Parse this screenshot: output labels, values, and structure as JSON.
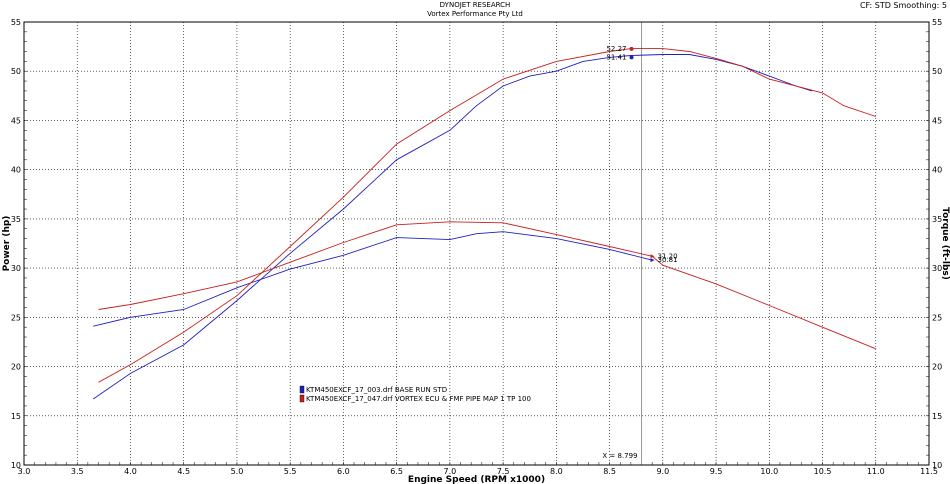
{
  "header": {
    "company": "DYNOJET RESEARCH",
    "shop": "Vortex Performance Pty Ltd",
    "meta": "CF: STD  Smoothing: 5"
  },
  "chart_data": {
    "type": "line",
    "xlabel": "Engine Speed (RPM x1000)",
    "ylabel_left": "Power (hp)",
    "ylabel_right": "Torque (ft-lbs)",
    "xlim": [
      3.0,
      11.5
    ],
    "ylim": [
      10,
      55
    ],
    "x_ticks": [
      "3.0",
      "3.5",
      "4.0",
      "4.5",
      "5.0",
      "5.5",
      "6.0",
      "6.5",
      "7.0",
      "7.5",
      "8.0",
      "8.5",
      "9.0",
      "9.5",
      "10.0",
      "10.5",
      "11.0",
      "11.5"
    ],
    "y_ticks": [
      "10",
      "15",
      "20",
      "25",
      "30",
      "35",
      "40",
      "45",
      "50",
      "55"
    ],
    "grid": true,
    "colors": {
      "base": "#2020c0",
      "vortex": "#c82020",
      "cursor": "#999999"
    },
    "series": [
      {
        "name": "KTM450EXCF_17_003.drf BASE RUN STD",
        "key": "base",
        "power": [
          [
            3.65,
            16.7
          ],
          [
            4.0,
            19.3
          ],
          [
            4.5,
            22.2
          ],
          [
            5.0,
            26.7
          ],
          [
            5.5,
            31.5
          ],
          [
            6.0,
            36.0
          ],
          [
            6.5,
            41.0
          ],
          [
            7.0,
            44.0
          ],
          [
            7.25,
            46.5
          ],
          [
            7.5,
            48.5
          ],
          [
            7.75,
            49.5
          ],
          [
            8.0,
            50.0
          ],
          [
            8.25,
            51.0
          ],
          [
            8.5,
            51.4
          ],
          [
            8.7,
            51.6
          ],
          [
            9.0,
            51.7
          ],
          [
            9.25,
            51.7
          ],
          [
            9.5,
            51.2
          ],
          [
            9.75,
            50.5
          ],
          [
            10.0,
            49.5
          ],
          [
            10.25,
            48.5
          ],
          [
            10.4,
            48.0
          ]
        ],
        "torque": [
          [
            3.65,
            24.1
          ],
          [
            4.0,
            25.0
          ],
          [
            4.5,
            25.8
          ],
          [
            5.0,
            28.0
          ],
          [
            5.5,
            29.9
          ],
          [
            6.0,
            31.3
          ],
          [
            6.5,
            33.1
          ],
          [
            7.0,
            32.9
          ],
          [
            7.25,
            33.5
          ],
          [
            7.5,
            33.7
          ],
          [
            8.0,
            33.0
          ],
          [
            8.5,
            31.9
          ],
          [
            8.9,
            30.8
          ]
        ],
        "marker_power": "51.41",
        "marker_torque": "30.81"
      },
      {
        "name": "KTM450EXCF_17_047.drf VORTEX ECU & FMF PIPE MAP 1 TP 100",
        "key": "vortex",
        "power": [
          [
            3.7,
            18.4
          ],
          [
            4.0,
            20.2
          ],
          [
            4.5,
            23.5
          ],
          [
            5.0,
            27.2
          ],
          [
            5.5,
            32.2
          ],
          [
            6.0,
            37.2
          ],
          [
            6.5,
            42.6
          ],
          [
            7.0,
            46.0
          ],
          [
            7.5,
            49.2
          ],
          [
            8.0,
            51.0
          ],
          [
            8.5,
            52.0
          ],
          [
            8.7,
            52.3
          ],
          [
            9.0,
            52.3
          ],
          [
            9.25,
            52.0
          ],
          [
            9.5,
            51.3
          ],
          [
            9.75,
            50.5
          ],
          [
            10.0,
            49.2
          ],
          [
            10.5,
            47.8
          ],
          [
            10.7,
            46.5
          ],
          [
            11.0,
            45.4
          ]
        ],
        "torque": [
          [
            3.7,
            25.8
          ],
          [
            4.0,
            26.3
          ],
          [
            4.5,
            27.4
          ],
          [
            5.0,
            28.6
          ],
          [
            5.5,
            30.6
          ],
          [
            6.0,
            32.6
          ],
          [
            6.5,
            34.4
          ],
          [
            7.0,
            34.7
          ],
          [
            7.5,
            34.6
          ],
          [
            8.0,
            33.4
          ],
          [
            8.5,
            32.2
          ],
          [
            8.9,
            31.2
          ],
          [
            9.0,
            30.3
          ],
          [
            9.5,
            28.4
          ],
          [
            10.0,
            26.2
          ],
          [
            10.5,
            24.0
          ],
          [
            11.0,
            21.8
          ]
        ],
        "marker_power": "52.27",
        "marker_torque": "31.20"
      }
    ],
    "cursor": {
      "x": 8.8,
      "label": "X = 8.799"
    }
  }
}
